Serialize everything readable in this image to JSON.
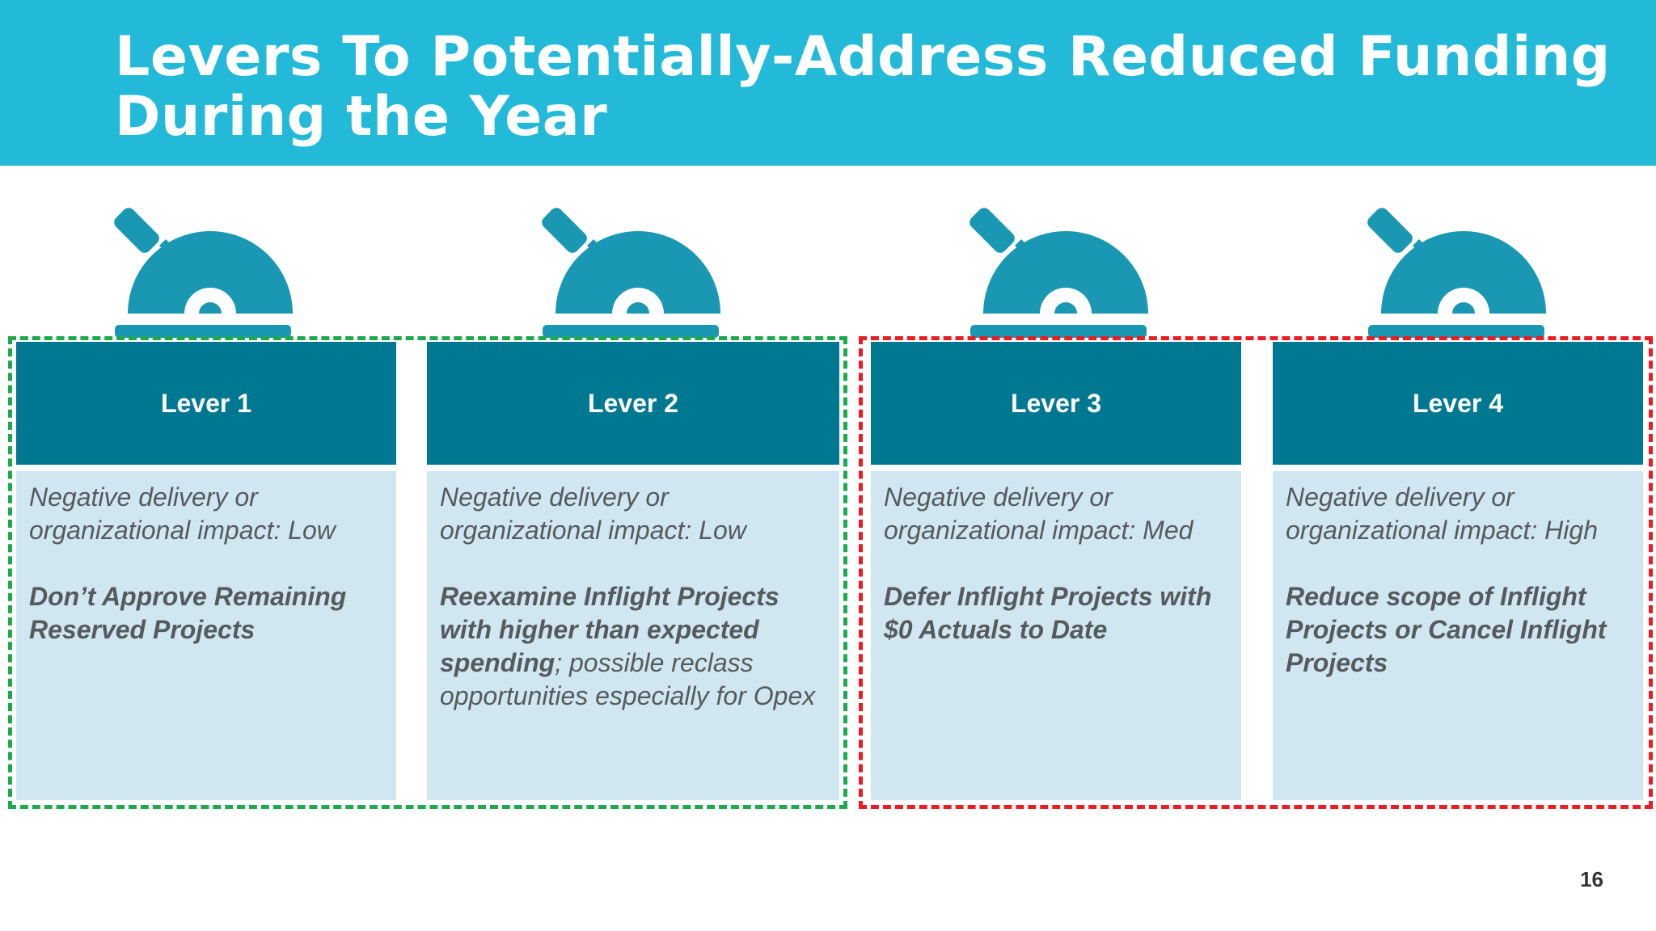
{
  "slide": {
    "title": "Levers To Potentially-Address Reduced Funding During the Year",
    "page_number": "16",
    "colors": {
      "header_bg": "#23b9d8",
      "lever_header_bg": "#007891",
      "lever_body_bg": "#d0e7f1",
      "icon": "#1a98b3",
      "low_impact_border": "#1daa4f",
      "high_impact_border": "#ec1c24"
    },
    "icon_name": "lever-icon",
    "levers": [
      {
        "label": "Lever 1",
        "impact": "Negative delivery or organizational impact: Low",
        "action_bold": "Don’t Approve Remaining Reserved Projects",
        "action_rest": ""
      },
      {
        "label": "Lever 2",
        "impact": "Negative delivery or organizational impact: Low",
        "action_bold": "Reexamine Inflight Projects with higher than expected spending",
        "action_rest": "; possible reclass opportunities especially for Opex"
      },
      {
        "label": "Lever 3",
        "impact": "Negative delivery or organizational impact: Med",
        "action_bold": "Defer Inflight Projects with $0 Actuals to Date",
        "action_rest": ""
      },
      {
        "label": "Lever 4",
        "impact": "Negative delivery or organizational impact: High",
        "action_bold": "Reduce scope of Inflight Projects or Cancel Inflight Projects",
        "action_rest": ""
      }
    ]
  }
}
